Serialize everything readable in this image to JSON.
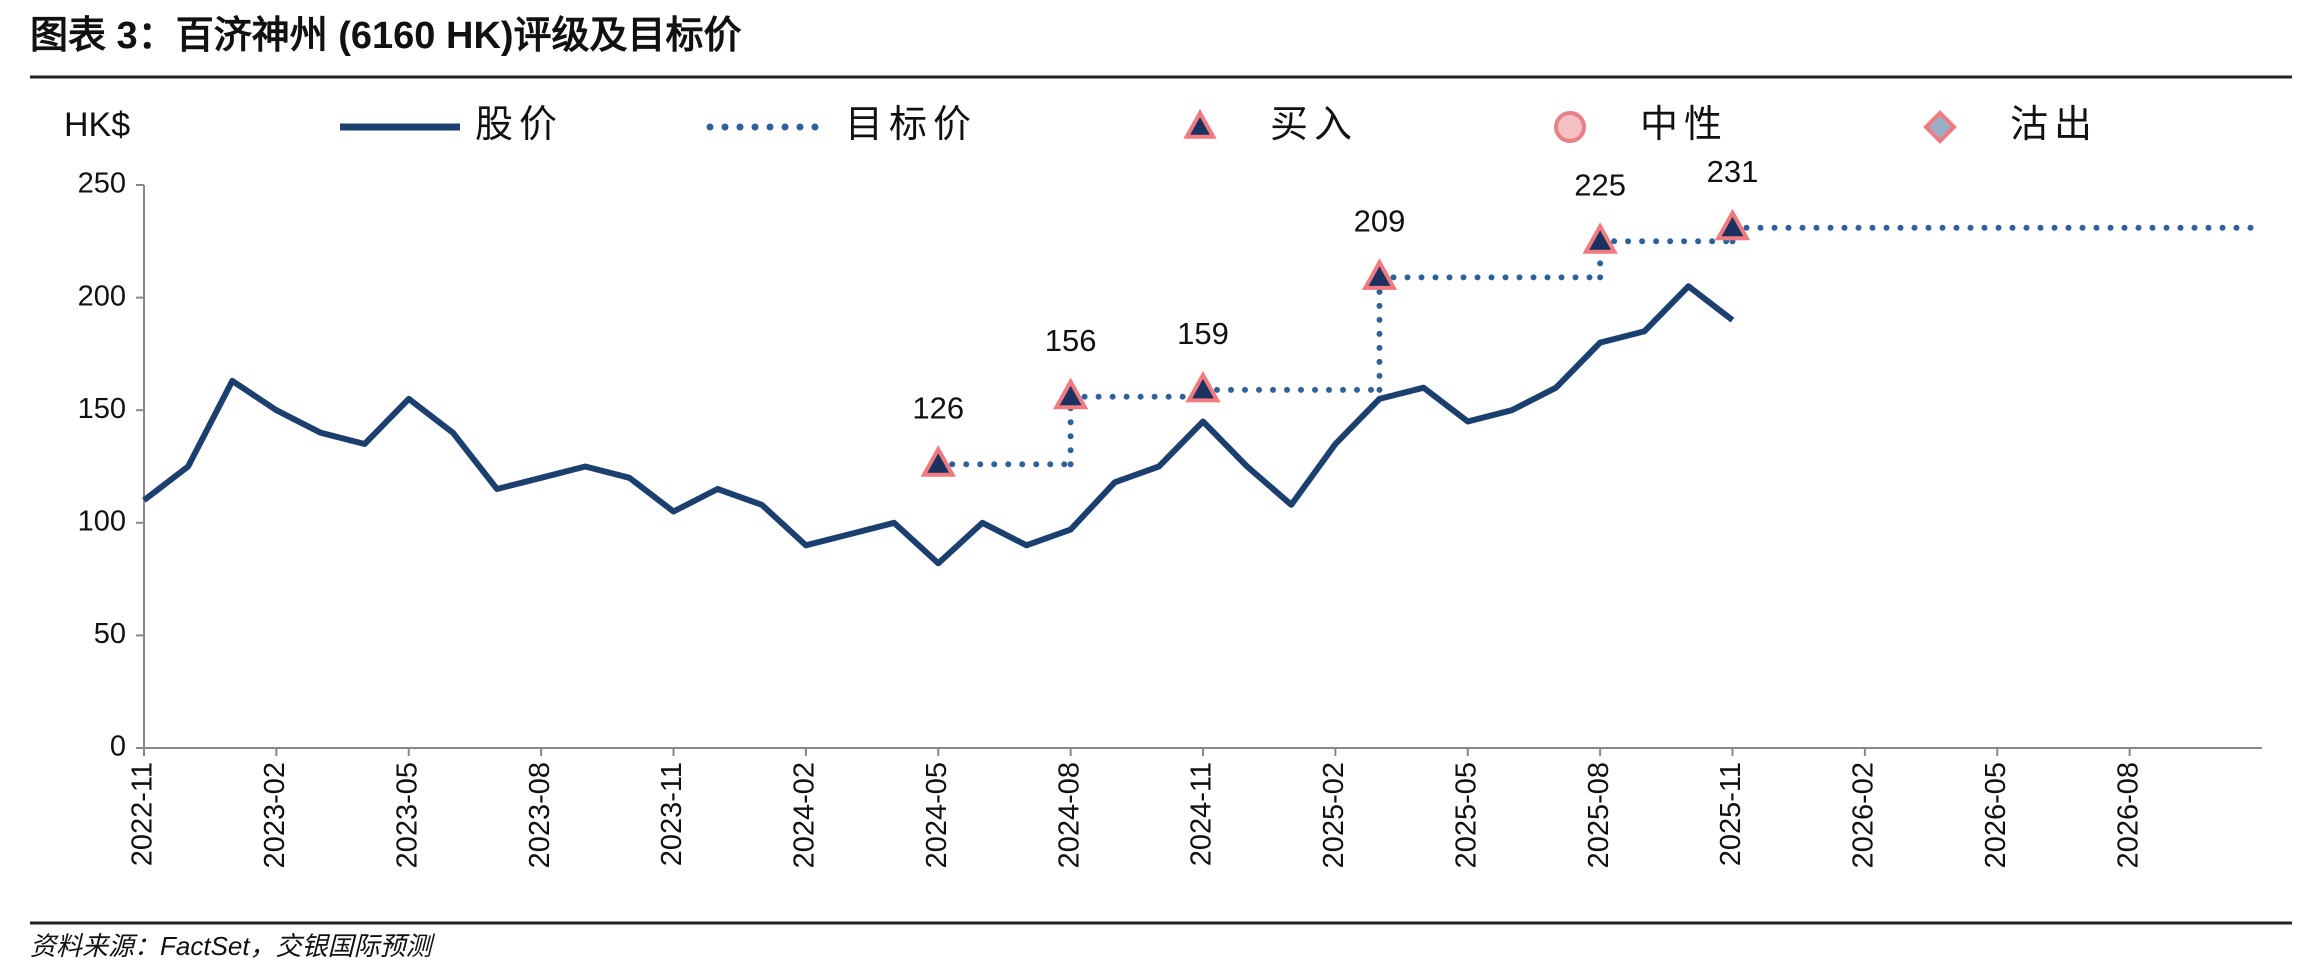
{
  "chart_data": {
    "type": "line",
    "title": "图表 3：百济神州 (6160 HK)评级及目标价",
    "y_unit": "HK$",
    "source": "资料来源：FactSet，交银国际预测",
    "xlim": [
      "2022-11",
      "2026-11"
    ],
    "xticks": [
      "2022-11",
      "2023-02",
      "2023-05",
      "2023-08",
      "2023-11",
      "2024-02",
      "2024-05",
      "2024-08",
      "2024-11",
      "2025-02",
      "2025-05",
      "2025-08",
      "2025-11",
      "2026-02",
      "2026-05",
      "2026-08"
    ],
    "ylim": [
      0,
      250
    ],
    "yticks": [
      0,
      50,
      100,
      150,
      200,
      250
    ],
    "series": [
      {
        "name": "股价",
        "type": "line",
        "color": "#1b3f6e",
        "x": [
          "2022-11",
          "2022-12",
          "2023-01",
          "2023-02",
          "2023-03",
          "2023-04",
          "2023-05",
          "2023-06",
          "2023-07",
          "2023-08",
          "2023-09",
          "2023-10",
          "2023-11",
          "2023-12",
          "2024-01",
          "2024-02",
          "2024-03",
          "2024-04",
          "2024-05",
          "2024-06",
          "2024-07",
          "2024-08",
          "2024-09",
          "2024-10",
          "2024-11",
          "2024-12",
          "2025-01",
          "2025-02",
          "2025-03",
          "2025-04",
          "2025-05",
          "2025-06",
          "2025-07",
          "2025-08",
          "2025-09",
          "2025-10",
          "2025-11"
        ],
        "values": [
          110,
          125,
          163,
          150,
          140,
          135,
          155,
          140,
          115,
          120,
          125,
          120,
          105,
          115,
          108,
          90,
          95,
          100,
          82,
          100,
          90,
          97,
          118,
          125,
          145,
          125,
          108,
          135,
          155,
          160,
          145,
          150,
          160,
          180,
          185,
          205,
          190
        ]
      },
      {
        "name": "目标价",
        "type": "step",
        "color": "#2e6099",
        "x": [
          "2024-05",
          "2024-08",
          "2024-11",
          "2025-03",
          "2025-08",
          "2025-11"
        ],
        "values": [
          126,
          156,
          159,
          209,
          225,
          231
        ]
      },
      {
        "name": "买入",
        "type": "marker",
        "marker": "triangle",
        "color": "#1b3160",
        "edge": "#f07a80",
        "x": [
          "2024-05",
          "2024-08",
          "2024-11",
          "2025-03",
          "2025-08",
          "2025-11"
        ],
        "values": [
          126,
          156,
          159,
          209,
          225,
          231
        ]
      },
      {
        "name": "中性",
        "type": "marker",
        "marker": "circle",
        "color": "#f4c0c4",
        "edge": "#e88088",
        "x": [],
        "values": []
      },
      {
        "name": "沽出",
        "type": "marker",
        "marker": "diamond",
        "color": "#9aaec6",
        "edge": "#f07a80",
        "x": [],
        "values": []
      }
    ]
  }
}
